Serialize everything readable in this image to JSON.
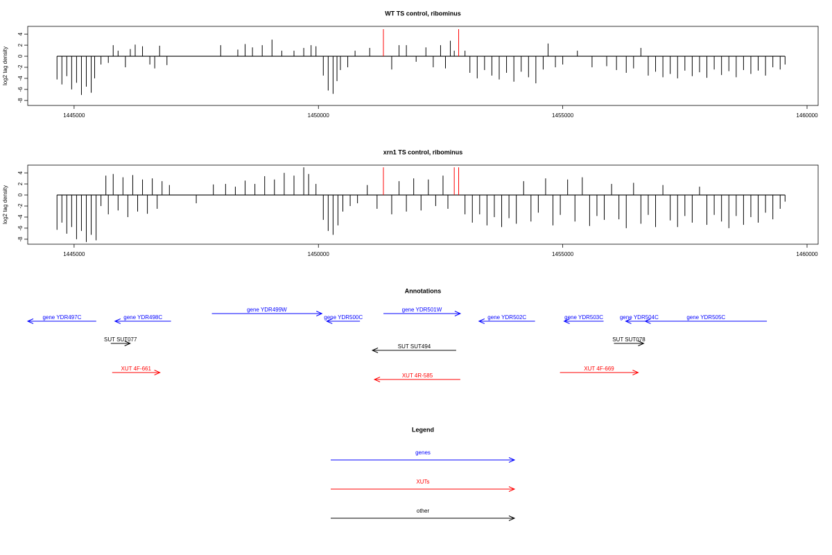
{
  "chart_data": [
    {
      "type": "bar",
      "title": "WT TS control, ribominus",
      "ylabel": "log2 tag density",
      "xlim": [
        1444051,
        1460227
      ],
      "ylim": [
        -8.9,
        5.4
      ],
      "xticks": [
        1445000,
        1450000,
        1455000,
        1460000
      ],
      "yticks": [
        4,
        2,
        0,
        -2,
        -4,
        -6,
        -8
      ],
      "series": [
        {
          "color": "#000000",
          "x": [
            1444650,
            1444750,
            1444850,
            1444950,
            1445050,
            1445150,
            1445250,
            1445350,
            1445420,
            1445550,
            1445700,
            1445800,
            1445900,
            1446050,
            1446150,
            1446250,
            1446400,
            1446550,
            1446650,
            1446750,
            1446900,
            1448000,
            1448350,
            1448500,
            1448650,
            1448850,
            1449050,
            1449250,
            1449500,
            1449700,
            1449850,
            1449950,
            1450100,
            1450200,
            1450300,
            1450380,
            1450450,
            1450600,
            1450750,
            1451050,
            1451500,
            1451650,
            1451800,
            1452000,
            1452200,
            1452350,
            1452500,
            1452600,
            1452700,
            1452780,
            1453000,
            1453100,
            1453250,
            1453400,
            1453550,
            1453700,
            1453850,
            1454000,
            1454150,
            1454300,
            1454450,
            1454600,
            1454700,
            1454850,
            1455000,
            1455300,
            1455600,
            1455900,
            1456100,
            1456300,
            1456450,
            1456600,
            1456750,
            1456900,
            1457050,
            1457200,
            1457350,
            1457500,
            1457650,
            1457800,
            1457950,
            1458100,
            1458250,
            1458400,
            1458550,
            1458700,
            1458850,
            1459000,
            1459150,
            1459300,
            1459450,
            1459550
          ],
          "values": [
            -4.2,
            -5.1,
            -3.6,
            -6.0,
            -4.8,
            -7.0,
            -5.5,
            -6.6,
            -4.0,
            -1.5,
            -1.2,
            2.0,
            1.0,
            -2.0,
            1.3,
            2.1,
            1.8,
            -1.5,
            -2.2,
            1.9,
            -1.6,
            2.0,
            1.2,
            2.2,
            1.6,
            2.0,
            3.0,
            1.0,
            1.0,
            1.5,
            2.0,
            1.8,
            -3.5,
            -6.2,
            -6.8,
            -4.5,
            -2.5,
            -2.0,
            1.0,
            1.5,
            -2.4,
            2.0,
            2.0,
            -1.0,
            1.6,
            -2.0,
            2.0,
            -2.2,
            2.8,
            1.0,
            1.0,
            -3.0,
            -4.0,
            -2.5,
            -3.5,
            -4.2,
            -3.0,
            -4.6,
            -2.8,
            -3.8,
            -4.9,
            -2.4,
            2.3,
            -2.0,
            -1.5,
            1.0,
            -2.0,
            -1.8,
            -2.5,
            -3.0,
            -2.2,
            1.5,
            -3.5,
            -2.8,
            -3.8,
            -3.2,
            -4.0,
            -2.6,
            -3.6,
            -2.9,
            -3.9,
            -2.4,
            -3.4,
            -2.7,
            -3.8,
            -2.5,
            -3.2,
            -2.6,
            -3.5,
            -2.0,
            -2.4,
            -1.5
          ]
        },
        {
          "color": "#ff0000",
          "x": [
            1451330,
            1452870
          ],
          "values": [
            4.9,
            4.9
          ]
        }
      ]
    },
    {
      "type": "bar",
      "title": "xrn1 TS control, ribominus",
      "ylabel": "log2 tag density",
      "xlim": [
        1444051,
        1460227
      ],
      "ylim": [
        -8.9,
        5.4
      ],
      "xticks": [
        1445000,
        1450000,
        1455000,
        1460000
      ],
      "yticks": [
        4,
        2,
        0,
        -2,
        -4,
        -6,
        -8
      ],
      "series": [
        {
          "color": "#000000",
          "x": [
            1444650,
            1444750,
            1444850,
            1444950,
            1445050,
            1445150,
            1445250,
            1445350,
            1445450,
            1445550,
            1445650,
            1445700,
            1445800,
            1445900,
            1446000,
            1446100,
            1446200,
            1446300,
            1446400,
            1446500,
            1446600,
            1446700,
            1446800,
            1446950,
            1447500,
            1447850,
            1448100,
            1448300,
            1448500,
            1448700,
            1448900,
            1449100,
            1449300,
            1449500,
            1449700,
            1449800,
            1449950,
            1450100,
            1450200,
            1450300,
            1450400,
            1450500,
            1450650,
            1450800,
            1451000,
            1451200,
            1451500,
            1451650,
            1451800,
            1451950,
            1452100,
            1452250,
            1452400,
            1452550,
            1452650,
            1453000,
            1453150,
            1453300,
            1453450,
            1453600,
            1453750,
            1453900,
            1454050,
            1454200,
            1454350,
            1454500,
            1454650,
            1454800,
            1454950,
            1455100,
            1455250,
            1455400,
            1455550,
            1455700,
            1455850,
            1456000,
            1456150,
            1456300,
            1456450,
            1456600,
            1456750,
            1456900,
            1457050,
            1457200,
            1457350,
            1457500,
            1457650,
            1457800,
            1457950,
            1458100,
            1458250,
            1458400,
            1458550,
            1458700,
            1458850,
            1459000,
            1459150,
            1459300,
            1459450,
            1459550
          ],
          "values": [
            -6.3,
            -5.0,
            -7.0,
            -5.8,
            -8.0,
            -6.5,
            -8.5,
            -7.2,
            -8.2,
            -2.0,
            3.5,
            -3.5,
            3.8,
            -2.8,
            3.2,
            -4.0,
            3.6,
            -3.0,
            2.8,
            -3.4,
            3.0,
            -2.5,
            2.5,
            1.8,
            -1.5,
            1.9,
            2.0,
            1.5,
            2.6,
            2.0,
            3.4,
            2.8,
            4.0,
            3.5,
            5.0,
            3.8,
            2.0,
            -4.5,
            -6.5,
            -7.2,
            -5.5,
            -3.0,
            -2.0,
            -1.5,
            1.8,
            -2.5,
            -3.5,
            2.5,
            -3.0,
            3.0,
            -2.8,
            2.8,
            -2.0,
            3.5,
            -2.5,
            -3.5,
            -5.0,
            -3.5,
            -5.5,
            -4.0,
            -5.8,
            -4.2,
            -5.2,
            2.5,
            -4.8,
            -3.2,
            3.0,
            -5.5,
            -3.6,
            2.8,
            -4.8,
            3.2,
            -5.6,
            -3.8,
            -4.5,
            2.0,
            -4.4,
            -6.0,
            2.2,
            -5.2,
            -3.6,
            -5.8,
            1.8,
            -4.6,
            -5.8,
            -3.8,
            -5.0,
            1.5,
            -5.4,
            -3.6,
            -4.8,
            -6.0,
            -3.8,
            -5.4,
            -4.0,
            -5.0,
            -3.2,
            -4.4,
            -2.5,
            -1.2
          ]
        },
        {
          "color": "#ff0000",
          "x": [
            1451330,
            1452780,
            1452870
          ],
          "values": [
            5.0,
            5.0,
            5.0
          ]
        }
      ]
    }
  ],
  "annotations": {
    "title": "Annotations",
    "features": [
      {
        "label": "gene YDR497C",
        "start": 1444051,
        "end": 1445453,
        "strand": "-",
        "color": "#0000ff"
      },
      {
        "label": "gene YDR498C",
        "start": 1445836,
        "end": 1446983,
        "strand": "-",
        "color": "#0000ff"
      },
      {
        "label": "gene YDR499W",
        "start": 1447819,
        "end": 1450071,
        "strand": "+",
        "color": "#0000ff"
      },
      {
        "label": "gene YDR500C",
        "start": 1450170,
        "end": 1450850,
        "strand": "-",
        "color": "#0000ff"
      },
      {
        "label": "gene YDR501W",
        "start": 1451331,
        "end": 1452904,
        "strand": "+",
        "color": "#0000ff"
      },
      {
        "label": "gene YDR502C",
        "start": 1453286,
        "end": 1454433,
        "strand": "-",
        "color": "#0000ff"
      },
      {
        "label": "gene YDR503C",
        "start": 1455028,
        "end": 1455836,
        "strand": "-",
        "color": "#0000ff"
      },
      {
        "label": "gene YDR504C",
        "start": 1456289,
        "end": 1456841,
        "strand": "-",
        "color": "#0000ff"
      },
      {
        "label": "gene YDR505C",
        "start": 1456686,
        "end": 1459178,
        "strand": "-",
        "color": "#0000ff"
      },
      {
        "label": "SUT SUT077",
        "start": 1445751,
        "end": 1446147,
        "strand": "+",
        "color": "#000000"
      },
      {
        "label": "SUT SUT494",
        "start": 1451105,
        "end": 1452819,
        "strand": "-",
        "color": "#000000"
      },
      {
        "label": "SUT SUT078",
        "start": 1456048,
        "end": 1456657,
        "strand": "+",
        "color": "#000000"
      },
      {
        "label": "XUT 4F-661",
        "start": 1445779,
        "end": 1446756,
        "strand": "+",
        "color": "#ff0000"
      },
      {
        "label": "XUT 4R-585",
        "start": 1451147,
        "end": 1452904,
        "strand": "-",
        "color": "#ff0000"
      },
      {
        "label": "XUT 4F-669",
        "start": 1454943,
        "end": 1456544,
        "strand": "+",
        "color": "#ff0000"
      }
    ]
  },
  "legend": {
    "title": "Legend",
    "entries": [
      {
        "label": "genes",
        "color": "#0000ff"
      },
      {
        "label": "XUTs",
        "color": "#ff0000"
      },
      {
        "label": "other",
        "color": "#000000"
      }
    ]
  }
}
